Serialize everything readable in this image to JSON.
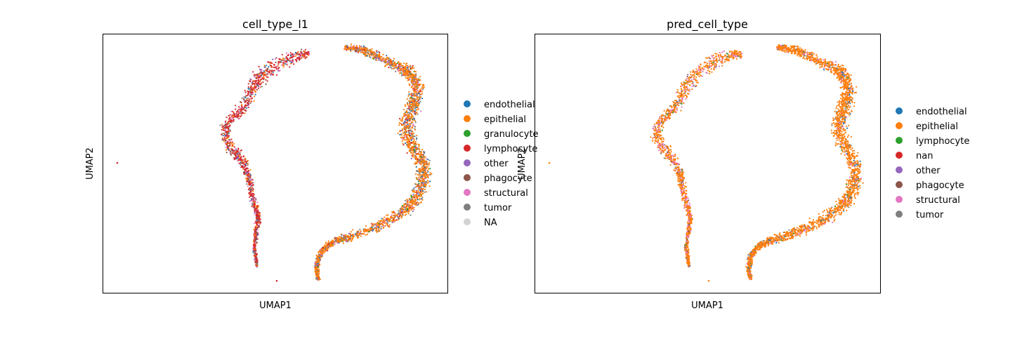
{
  "chart_data": [
    {
      "type": "scatter",
      "title": "cell_type_l1",
      "xlabel": "UMAP1",
      "ylabel": "UMAP2",
      "xticks": false,
      "yticks": false,
      "legend": {
        "placement": "right-outside",
        "entries": [
          {
            "label": "endothelial",
            "color": "#1f77b4"
          },
          {
            "label": "epithelial",
            "color": "#ff7f0e"
          },
          {
            "label": "granulocyte",
            "color": "#2ca02c"
          },
          {
            "label": "lymphocyte",
            "color": "#d62728"
          },
          {
            "label": "other",
            "color": "#9467bd"
          },
          {
            "label": "phagocyte",
            "color": "#8c564b"
          },
          {
            "label": "structural",
            "color": "#e377c2"
          },
          {
            "label": "tumor",
            "color": "#7f7f7f"
          },
          {
            "label": "NA",
            "color": "#d3d3d3"
          }
        ]
      },
      "clusters": [
        {
          "name": "left-arc",
          "weights": {
            "lymphocyte": 0.55,
            "epithelial": 0.12,
            "structural": 0.1,
            "tumor": 0.1,
            "other": 0.05,
            "phagocyte": 0.04,
            "endothelial": 0.04
          }
        },
        {
          "name": "right-arc",
          "weights": {
            "epithelial": 0.62,
            "tumor": 0.15,
            "endothelial": 0.06,
            "lymphocyte": 0.07,
            "structural": 0.05,
            "other": 0.03,
            "granulocyte": 0.02
          }
        }
      ]
    },
    {
      "type": "scatter",
      "title": "pred_cell_type",
      "xlabel": "UMAP1",
      "ylabel": "UMAP2",
      "xticks": false,
      "yticks": false,
      "legend": {
        "placement": "right-outside",
        "entries": [
          {
            "label": "endothelial",
            "color": "#1f77b4"
          },
          {
            "label": "epithelial",
            "color": "#ff7f0e"
          },
          {
            "label": "lymphocyte",
            "color": "#2ca02c"
          },
          {
            "label": "nan",
            "color": "#d62728"
          },
          {
            "label": "other",
            "color": "#9467bd"
          },
          {
            "label": "phagocyte",
            "color": "#8c564b"
          },
          {
            "label": "structural",
            "color": "#e377c2"
          },
          {
            "label": "tumor",
            "color": "#7f7f7f"
          }
        ]
      },
      "clusters": [
        {
          "name": "left-arc",
          "weights": {
            "epithelial": 0.7,
            "structural": 0.22,
            "tumor": 0.04,
            "lymphocyte": 0.02,
            "phagocyte": 0.02
          }
        },
        {
          "name": "right-arc",
          "weights": {
            "epithelial": 0.85,
            "tumor": 0.06,
            "structural": 0.05,
            "endothelial": 0.03,
            "lymphocyte": 0.01
          }
        }
      ]
    }
  ]
}
